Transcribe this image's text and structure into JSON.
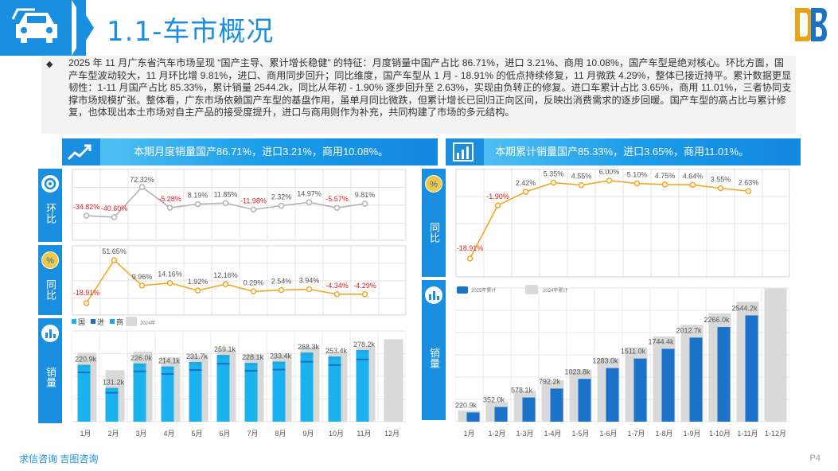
{
  "header": {
    "title": "1.1-车市概况",
    "page_number": "P4",
    "footer": "求信咨询 吉图咨询"
  },
  "summary": {
    "bullet": "◆",
    "text": "2025 年 11 月广东省汽车市场呈现 “国产主导、累计增长稳健” 的特征：月度销量中国产占比 86.71%，进口 3.21%、商用 10.08%，国产车型是绝对核心。环比方面，国产车型波动较大，11 月环比增 9.81%，进口、商用同步回升；同比维度，国产车型从 1 月 - 18.91% 的低点持续修复，11 月微跌 4.29%，整体已接近持平。累计数据更显韧性：1-11 月国产占比 85.33%，累计销量 2544.2k，同比从年初 - 1.90% 逐步回升至 2.63%，实现由负转正的修复。进口车累计占比 3.65%，商用 11.01%，三者协同支撑市场规模扩张。整体看，广东市场依赖国产车型的基盘作用，虽单月同比微跌，但累计增长已回归正向区间，反映出消费需求的逐步回暖。国产车型的高占比与累计修复，也体现出本土市场对自主产品的接受度提升，进口与商用则作为补充，共同构建了市场的多元结构。"
  },
  "left": {
    "banner": "本期月度销量国产86.71%，进口3.21%，商用10.08%。",
    "labels": {
      "mom": "环比",
      "yoy": "同比",
      "sales": "销量"
    }
  },
  "right": {
    "banner": "本期累计销量国产85.33%，进口3.65%，商用11.01%。",
    "labels": {
      "yoy": "同比",
      "sales": "销量"
    }
  },
  "chart_data": [
    {
      "type": "line",
      "name": "monthly_mom",
      "categories": [
        "1月",
        "2月",
        "3月",
        "4月",
        "5月",
        "6月",
        "7月",
        "8月",
        "9月",
        "10月",
        "11月",
        "12月"
      ],
      "values": [
        -34.82,
        -40.6,
        72.32,
        -5.28,
        8.19,
        11.85,
        -11.98,
        2.32,
        14.97,
        -5.57,
        9.81
      ],
      "labels": [
        "-34.82%",
        "-40.60%",
        "72.32%",
        "-5.28%",
        "8.19%",
        "11.85%",
        "-11.98%",
        "2.32%",
        "14.97%",
        "-5.57%",
        "9.81%"
      ],
      "color": "#b3b3b3",
      "negative_label_color": "#e02020"
    },
    {
      "type": "line",
      "name": "monthly_yoy",
      "categories": [
        "1月",
        "2月",
        "3月",
        "4月",
        "5月",
        "6月",
        "7月",
        "8月",
        "9月",
        "10月",
        "11月",
        "12月"
      ],
      "values": [
        -18.91,
        51.65,
        9.96,
        14.16,
        1.92,
        12.16,
        0.29,
        2.54,
        3.94,
        -4.34,
        -4.29
      ],
      "labels": [
        "-18.91%",
        "51.65%",
        "9.96%",
        "14.16%",
        "1.92%",
        "12.16%",
        "0.29%",
        "2.54%",
        "3.94%",
        "-4.34%",
        "-4.29%"
      ],
      "color": "#f5a623",
      "negative_label_color": "#e02020"
    },
    {
      "type": "bar",
      "name": "monthly_sales",
      "legend": [
        "国",
        "进",
        "商",
        "2024年"
      ],
      "categories": [
        "1月",
        "2月",
        "3月",
        "4月",
        "5月",
        "6月",
        "7月",
        "8月",
        "9月",
        "10月",
        "11月",
        "12月"
      ],
      "total_2025": [
        220.9,
        131.2,
        226.0,
        214.1,
        231.7,
        259.1,
        228.1,
        233.4,
        268.3,
        253.4,
        278.2
      ],
      "labels": [
        "220.9k",
        "131.2k",
        "226.0k",
        "214.1k",
        "231.7k",
        "259.1k",
        "228.1k",
        "233.4k",
        "268.3k",
        "253.4k",
        "278.2k"
      ],
      "total_2024": [
        268,
        200,
        272,
        250,
        258,
        280,
        262,
        262,
        290,
        268,
        290,
        320
      ],
      "colors": {
        "domestic": "#1ab3f0",
        "import": "#1b6fc2",
        "commercial": "#22a7e0",
        "prev": "#d9d9d9"
      }
    },
    {
      "type": "line",
      "name": "cumulative_yoy",
      "categories": [
        "1月",
        "1-2月",
        "1-3月",
        "1-4月",
        "1-5月",
        "1-6月",
        "1-7月",
        "1-8月",
        "1-9月",
        "1-10月",
        "1-11月",
        "1-12月"
      ],
      "values": [
        -18.91,
        -1.9,
        2.42,
        5.35,
        4.55,
        6.0,
        5.1,
        4.75,
        4.64,
        3.55,
        2.63
      ],
      "labels": [
        "-18.91%",
        "-1.90%",
        "2.42%",
        "5.35%",
        "4.55%",
        "6.00%",
        "5.10%",
        "4.75%",
        "4.64%",
        "3.55%",
        "2.63%"
      ],
      "color": "#f5a623",
      "negative_label_color": "#e02020"
    },
    {
      "type": "bar",
      "name": "cumulative_sales",
      "legend": [
        "2025年累计",
        "2024年累计"
      ],
      "categories": [
        "1月",
        "1-2月",
        "1-3月",
        "1-4月",
        "1-5月",
        "1-6月",
        "1-7月",
        "1-8月",
        "1-9月",
        "1-10月",
        "1-11月",
        "1-12月"
      ],
      "values_2025": [
        220.9,
        352.0,
        578.1,
        792.2,
        1023.8,
        1283.0,
        1511.0,
        1744.4,
        2012.7,
        2266.0,
        2544.2
      ],
      "labels": [
        "220.9k",
        "352.0k",
        "578.1k",
        "792.2k",
        "1023.8k",
        "1283.0k",
        "1511.0k",
        "1744.4k",
        "2012.7k",
        "2266.0k",
        "2544.2k"
      ],
      "values_2024": [
        268,
        470,
        740,
        990,
        1250,
        1520,
        1780,
        2040,
        2320,
        2590,
        2870,
        3190
      ],
      "colors": {
        "cur": "#1a73c9",
        "prev": "#d9d9d9"
      }
    }
  ]
}
